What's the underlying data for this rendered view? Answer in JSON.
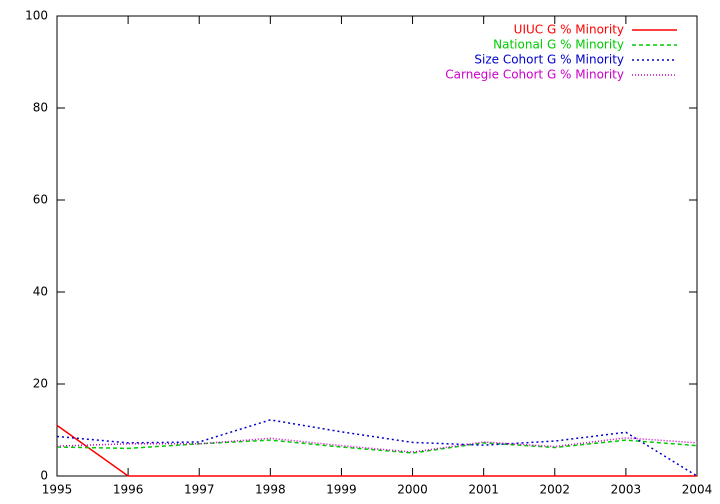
{
  "chart_data": {
    "type": "line",
    "x": [
      1995,
      1996,
      1997,
      1998,
      1999,
      2000,
      2001,
      2002,
      2003,
      2004
    ],
    "series": [
      {
        "name": "UIUC G % Minority",
        "color": "#ff0000",
        "style": "solid",
        "values": [
          11,
          0,
          0,
          0,
          0,
          0,
          0,
          0,
          0,
          0
        ]
      },
      {
        "name": "National G % Minority",
        "color": "#00cc00",
        "style": "dashed",
        "values": [
          6.3,
          6.0,
          7.0,
          7.8,
          6.3,
          5.0,
          7.2,
          6.2,
          7.8,
          6.6
        ]
      },
      {
        "name": "Size Cohort G % Minority",
        "color": "#0000cc",
        "style": "dotted",
        "values": [
          8.6,
          7.2,
          7.4,
          12.2,
          9.6,
          7.3,
          6.7,
          7.6,
          9.5,
          0
        ]
      },
      {
        "name": "Carnegie Cohort G % Minority",
        "color": "#cc00cc",
        "style": "fine-dotted",
        "values": [
          6.5,
          7.0,
          7.0,
          8.2,
          6.6,
          5.2,
          7.4,
          6.4,
          8.3,
          7.2
        ]
      }
    ],
    "xlim": [
      1995,
      2004
    ],
    "xticks": [
      1995,
      1996,
      1997,
      1998,
      1999,
      2000,
      2001,
      2002,
      2003,
      2004
    ],
    "ylim": [
      0,
      100
    ],
    "yticks": [
      0,
      20,
      40,
      60,
      80,
      100
    ],
    "grid": false,
    "legend": "top-right"
  }
}
